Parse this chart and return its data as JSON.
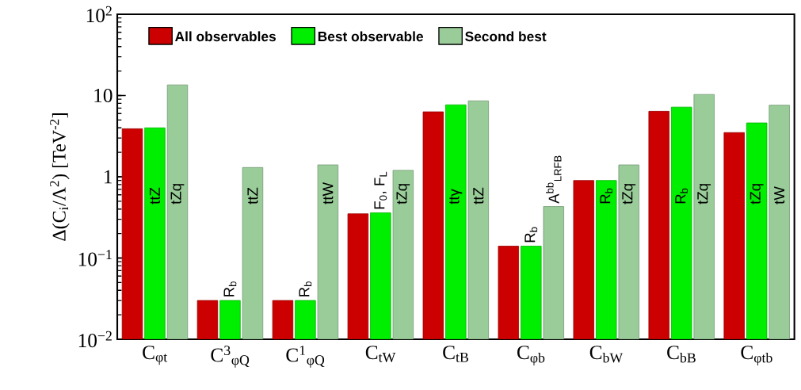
{
  "chart_data": {
    "type": "bar",
    "ylabel": "Δ(C$_{i}$/Λ$^{2}$) [TeV$^{-2}$]",
    "categories": [
      "C$_{φt}$",
      "C$^{3}$$_{φQ}$",
      "C$^{1}$$_{φQ}$",
      "C$_{tW}$",
      "C$_{tB}$",
      "C$_{φb}$",
      "C$_{bW}$",
      "C$_{bB}$",
      "C$_{φtb}$"
    ],
    "series": [
      {
        "name": "All observables",
        "color": "#cc0000",
        "values": [
          3.9,
          0.03,
          0.03,
          0.35,
          6.3,
          0.14,
          0.9,
          6.4,
          3.5
        ]
      },
      {
        "name": "Best observable",
        "color": "#00ee00",
        "values": [
          4.0,
          0.03,
          0.03,
          0.36,
          7.7,
          0.14,
          0.9,
          7.2,
          4.6
        ],
        "value_labels": [
          "ttZ",
          "R$_{b}$",
          "R$_{b}$",
          "F$_{0}$, F$_{L}$",
          "ttγ",
          "R$_{b}$",
          "R$_{b}$",
          "R$_{b}$",
          "tZq"
        ]
      },
      {
        "name": "Second best",
        "color": "#99cc99",
        "values": [
          13.5,
          1.3,
          1.4,
          1.2,
          8.6,
          0.43,
          1.4,
          10.3,
          7.6
        ],
        "value_labels": [
          "tZq",
          "ttZ",
          "ttW",
          "tZq",
          "ttZ",
          "A$^{bb}$$_{LRFB}$",
          "tZq",
          "tZq",
          "tW"
        ]
      }
    ],
    "log": true,
    "ylim": [
      0.01,
      100
    ],
    "yticks": [
      {
        "value": 0.01,
        "label": "10$^{−2}$"
      },
      {
        "value": 0.1,
        "label": "10$^{−1}$"
      },
      1,
      10,
      {
        "value": 100,
        "label": "10$^{2}$"
      }
    ],
    "legend": "top",
    "grid": false
  }
}
